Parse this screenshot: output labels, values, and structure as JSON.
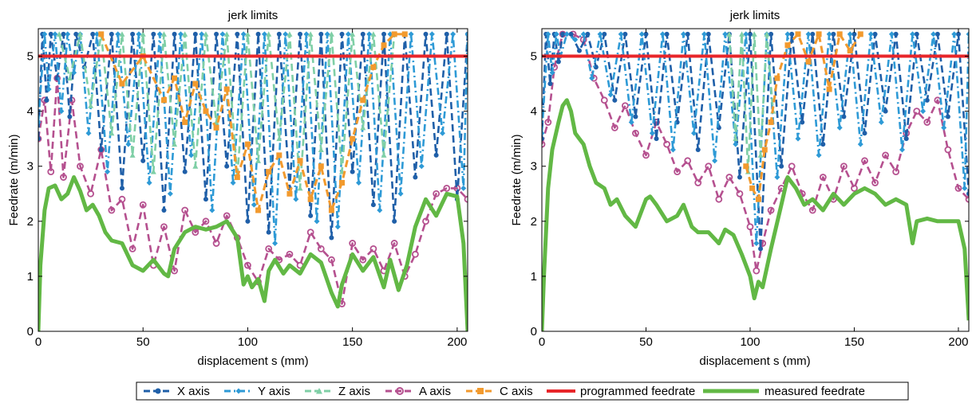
{
  "legend": {
    "x_axis": "X axis",
    "y_axis": "Y axis",
    "z_axis": "Z axis",
    "a_axis": "A axis",
    "c_axis": "C axis",
    "programmed": "programmed feedrate",
    "measured": "measured feedrate"
  },
  "colors": {
    "x_axis": "#1f5fa8",
    "y_axis": "#2e9ad6",
    "z_axis": "#7fcfa6",
    "a_axis": "#b5508f",
    "c_axis": "#f29a2e",
    "programmed": "#e8262a",
    "measured": "#62b845"
  },
  "chart_data": [
    {
      "type": "line",
      "title": "jerk limits",
      "xlabel": "displacement s (mm)",
      "ylabel": "Feedrate (m/min)",
      "xlim": [
        0,
        205
      ],
      "ylim": [
        0,
        5.5
      ],
      "xticks": [
        0,
        50,
        100,
        150,
        200
      ],
      "yticks": [
        0,
        1,
        2,
        3,
        4,
        5
      ],
      "grid": false,
      "programmed_feedrate": 5,
      "measured_feedrate": {
        "x": [
          0,
          1,
          3,
          5,
          8,
          11,
          14,
          17,
          20,
          23,
          26,
          29,
          32,
          35,
          40,
          45,
          50,
          55,
          60,
          62,
          65,
          70,
          75,
          80,
          85,
          90,
          95,
          98,
          100,
          102,
          105,
          108,
          110,
          113,
          117,
          120,
          125,
          130,
          135,
          140,
          143,
          145,
          150,
          155,
          160,
          165,
          168,
          172,
          176,
          180,
          185,
          190,
          195,
          200,
          203,
          205
        ],
        "y": [
          0,
          1.2,
          2.2,
          2.6,
          2.65,
          2.4,
          2.5,
          2.8,
          2.55,
          2.2,
          2.3,
          2.1,
          1.8,
          1.65,
          1.6,
          1.2,
          1.1,
          1.3,
          1.05,
          1.0,
          1.5,
          1.8,
          1.9,
          1.85,
          1.9,
          2.0,
          1.7,
          0.85,
          1.0,
          0.8,
          0.95,
          0.55,
          1.1,
          1.3,
          1.05,
          1.2,
          1.05,
          1.4,
          1.25,
          0.7,
          0.45,
          0.85,
          1.4,
          1.1,
          1.35,
          0.8,
          1.3,
          0.75,
          1.2,
          1.9,
          2.4,
          2.1,
          2.5,
          2.45,
          1.6,
          0
        ]
      },
      "axis_limits": {
        "x_axis": {
          "x": [
            0,
            2,
            4,
            6,
            9,
            12,
            15,
            18,
            22,
            26,
            30,
            35,
            40,
            45,
            50,
            55,
            60,
            65,
            70,
            75,
            80,
            85,
            90,
            95,
            100,
            105,
            110,
            115,
            120,
            125,
            130,
            135,
            140,
            145,
            150,
            155,
            160,
            165,
            170,
            175,
            180,
            185,
            190,
            195,
            200,
            205
          ],
          "y": [
            3.5,
            5.4,
            4.2,
            5.4,
            4.6,
            5.4,
            3.9,
            5.4,
            4.8,
            5.4,
            3.3,
            5.4,
            2.6,
            5.4,
            3.1,
            5.4,
            2.2,
            5.4,
            2.9,
            5.4,
            2.4,
            5.4,
            3.0,
            5.4,
            2.0,
            5.4,
            1.8,
            5.4,
            2.6,
            5.4,
            2.1,
            5.4,
            1.7,
            5.4,
            2.9,
            5.4,
            2.3,
            5.4,
            2.0,
            5.4,
            2.8,
            5.4,
            3.2,
            5.4,
            2.4,
            5.4
          ]
        },
        "y_axis": {
          "x": [
            0,
            3,
            5,
            8,
            11,
            14,
            17,
            20,
            24,
            28,
            33,
            38,
            43,
            48,
            53,
            58,
            63,
            68,
            73,
            78,
            83,
            88,
            93,
            98,
            103,
            108,
            113,
            118,
            123,
            128,
            133,
            138,
            143,
            148,
            153,
            158,
            163,
            168,
            173,
            178,
            183,
            188,
            193,
            198,
            203,
            205
          ],
          "y": [
            3.8,
            5.4,
            4.4,
            5.4,
            4.0,
            5.4,
            4.7,
            5.4,
            3.6,
            5.4,
            2.9,
            5.4,
            3.4,
            5.4,
            2.7,
            5.4,
            2.5,
            5.4,
            3.2,
            5.4,
            2.2,
            5.4,
            2.7,
            5.4,
            2.3,
            5.4,
            1.6,
            5.4,
            2.4,
            5.4,
            2.0,
            5.4,
            1.9,
            5.4,
            2.7,
            5.4,
            2.2,
            5.4,
            2.5,
            5.4,
            3.0,
            5.4,
            3.6,
            5.4,
            2.6,
            5.4
          ]
        },
        "z_axis": {
          "x": [
            10,
            15,
            20,
            25,
            30,
            35,
            40,
            45,
            50,
            55,
            60,
            65,
            70,
            75,
            80,
            85,
            90,
            95,
            100,
            105,
            110,
            115,
            120,
            125,
            130,
            135,
            140,
            145,
            150,
            155,
            160,
            165,
            170
          ],
          "y": [
            5.4,
            4.6,
            5.4,
            4.1,
            5.4,
            3.6,
            5.4,
            3.2,
            5.4,
            2.9,
            5.4,
            3.4,
            5.4,
            3.0,
            5.4,
            3.8,
            5.4,
            2.8,
            5.4,
            3.1,
            5.4,
            3.5,
            5.4,
            2.6,
            5.4,
            3.3,
            5.4,
            2.9,
            5.4,
            3.7,
            5.4,
            3.2,
            5.4
          ]
        },
        "a_axis": {
          "x": [
            0,
            3,
            6,
            9,
            12,
            16,
            20,
            25,
            30,
            35,
            40,
            45,
            50,
            55,
            60,
            65,
            70,
            75,
            80,
            85,
            90,
            95,
            100,
            105,
            110,
            115,
            120,
            125,
            130,
            135,
            140,
            145,
            150,
            155,
            160,
            165,
            170,
            175,
            180,
            185,
            190,
            195,
            200,
            205
          ],
          "y": [
            3.5,
            4.2,
            2.9,
            4.6,
            2.8,
            4.2,
            3.0,
            2.5,
            3.3,
            2.2,
            2.4,
            1.5,
            2.3,
            1.2,
            1.9,
            1.1,
            2.2,
            1.8,
            2.0,
            1.6,
            2.1,
            1.7,
            1.2,
            0.9,
            1.5,
            1.3,
            1.4,
            1.2,
            1.8,
            1.5,
            1.3,
            0.5,
            1.6,
            1.3,
            1.5,
            1.1,
            1.6,
            1.0,
            1.4,
            2.0,
            2.5,
            2.6,
            2.6,
            2.4
          ]
        },
        "c_axis": {
          "x": [
            30,
            40,
            50,
            60,
            65,
            70,
            75,
            80,
            85,
            90,
            95,
            100,
            105,
            110,
            115,
            120,
            125,
            130,
            135,
            140,
            145,
            150,
            155,
            160,
            165,
            170,
            175
          ],
          "y": [
            5.4,
            4.5,
            5.0,
            4.2,
            4.6,
            3.8,
            4.5,
            4.0,
            3.7,
            4.4,
            2.8,
            3.4,
            2.2,
            2.9,
            3.2,
            2.5,
            3.1,
            2.4,
            3.0,
            2.2,
            2.7,
            3.5,
            4.2,
            4.8,
            5.2,
            5.4,
            5.4
          ]
        }
      }
    },
    {
      "type": "line",
      "title": "jerk limits",
      "xlabel": "displacement s (mm)",
      "ylabel": "Feedrate (m/min)",
      "xlim": [
        0,
        205
      ],
      "ylim": [
        0,
        5.5
      ],
      "xticks": [
        0,
        50,
        100,
        150,
        200
      ],
      "yticks": [
        0,
        1,
        2,
        3,
        4,
        5
      ],
      "grid": false,
      "programmed_feedrate": 5,
      "measured_feedrate": {
        "x": [
          0,
          1,
          3,
          5,
          8,
          10,
          12,
          14,
          16,
          18,
          20,
          23,
          26,
          30,
          33,
          36,
          40,
          45,
          50,
          52,
          55,
          60,
          65,
          68,
          72,
          75,
          80,
          85,
          88,
          92,
          96,
          100,
          102,
          104,
          106,
          110,
          115,
          118,
          122,
          126,
          130,
          135,
          140,
          145,
          150,
          155,
          160,
          165,
          170,
          175,
          178,
          180,
          185,
          190,
          195,
          200,
          203,
          205
        ],
        "y": [
          0,
          1.0,
          2.6,
          3.3,
          3.8,
          4.1,
          4.2,
          4.0,
          3.6,
          3.5,
          3.4,
          3.0,
          2.7,
          2.6,
          2.3,
          2.4,
          2.1,
          1.9,
          2.4,
          2.45,
          2.3,
          2.0,
          2.1,
          2.3,
          1.9,
          1.8,
          1.8,
          1.6,
          1.85,
          1.75,
          1.4,
          1.0,
          0.6,
          0.9,
          0.8,
          1.5,
          2.3,
          2.8,
          2.6,
          2.3,
          2.4,
          2.2,
          2.5,
          2.3,
          2.5,
          2.6,
          2.5,
          2.3,
          2.4,
          2.3,
          1.6,
          2.0,
          2.05,
          2.0,
          2.0,
          2.0,
          1.5,
          0.2
        ]
      },
      "axis_limits": {
        "x_axis": {
          "x": [
            0,
            2,
            4,
            6,
            8,
            10,
            14,
            18,
            22,
            26,
            30,
            35,
            40,
            45,
            50,
            55,
            60,
            65,
            70,
            75,
            80,
            85,
            90,
            95,
            100,
            105,
            110,
            115,
            120,
            125,
            130,
            135,
            140,
            145,
            150,
            155,
            160,
            165,
            170,
            175,
            180,
            185,
            190,
            195,
            200,
            205
          ],
          "y": [
            3.5,
            5.4,
            4.5,
            5.4,
            4.9,
            5.4,
            5.4,
            5.1,
            5.4,
            4.8,
            5.4,
            4.2,
            5.4,
            3.9,
            5.4,
            3.5,
            5.4,
            3.8,
            5.4,
            3.3,
            5.4,
            3.7,
            5.4,
            2.8,
            5.4,
            1.5,
            5.4,
            3.0,
            5.4,
            3.8,
            5.4,
            3.4,
            5.4,
            3.9,
            5.4,
            3.6,
            5.4,
            4.0,
            5.4,
            3.5,
            5.4,
            4.2,
            5.4,
            3.9,
            5.4,
            2.5
          ]
        },
        "y_axis": {
          "x": [
            0,
            3,
            5,
            7,
            9,
            12,
            16,
            20,
            24,
            28,
            33,
            38,
            43,
            48,
            53,
            58,
            63,
            68,
            73,
            78,
            83,
            88,
            93,
            98,
            103,
            108,
            113,
            118,
            123,
            128,
            133,
            138,
            143,
            148,
            153,
            158,
            163,
            168,
            173,
            178,
            183,
            188,
            193,
            198,
            203,
            205
          ],
          "y": [
            3.6,
            5.4,
            4.7,
            5.4,
            5.0,
            5.4,
            5.3,
            5.4,
            4.6,
            5.4,
            4.3,
            5.4,
            3.8,
            5.4,
            3.6,
            5.4,
            3.3,
            5.4,
            3.6,
            5.4,
            3.1,
            5.4,
            3.4,
            5.4,
            1.6,
            5.4,
            2.8,
            5.4,
            3.5,
            5.4,
            3.2,
            5.4,
            3.7,
            5.4,
            3.4,
            5.4,
            3.8,
            5.4,
            3.3,
            5.4,
            4.0,
            5.4,
            3.7,
            5.4,
            2.6,
            5.4
          ]
        },
        "z_axis": {
          "x": [
            90,
            93,
            96,
            99,
            102,
            105,
            108,
            111
          ],
          "y": [
            5.4,
            3.5,
            5.4,
            2.9,
            5.4,
            3.2,
            5.4,
            4.0
          ]
        },
        "a_axis": {
          "x": [
            0,
            3,
            6,
            10,
            15,
            20,
            25,
            30,
            35,
            40,
            45,
            50,
            55,
            60,
            65,
            70,
            75,
            80,
            85,
            90,
            95,
            100,
            103,
            106,
            110,
            115,
            120,
            125,
            130,
            135,
            140,
            145,
            150,
            155,
            160,
            165,
            170,
            175,
            180,
            185,
            190,
            195,
            200,
            205
          ],
          "y": [
            3.4,
            3.8,
            4.8,
            5.4,
            5.4,
            5.3,
            4.6,
            4.2,
            3.7,
            4.1,
            3.6,
            3.2,
            3.8,
            3.4,
            2.9,
            3.1,
            2.7,
            3.0,
            2.4,
            2.8,
            2.5,
            1.9,
            1.1,
            1.6,
            2.2,
            2.6,
            3.0,
            2.5,
            2.2,
            2.8,
            2.4,
            3.0,
            2.6,
            3.1,
            2.7,
            3.2,
            2.9,
            3.6,
            4.0,
            3.8,
            4.2,
            3.3,
            2.6,
            2.4
          ]
        },
        "c_axis": {
          "x": [
            98,
            101,
            104,
            107,
            110,
            113,
            118,
            123,
            128,
            133,
            138,
            143,
            148,
            153
          ],
          "y": [
            3.0,
            2.6,
            2.4,
            3.3,
            3.8,
            4.6,
            5.2,
            5.4,
            4.9,
            5.4,
            4.4,
            5.4,
            5.1,
            5.4
          ]
        }
      }
    }
  ]
}
